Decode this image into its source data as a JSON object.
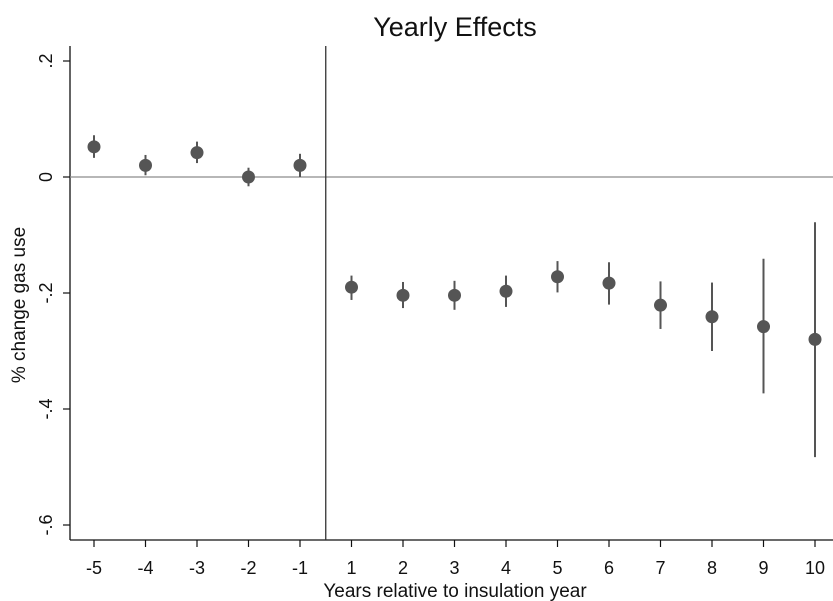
{
  "chart_data": {
    "type": "scatter",
    "title": "Yearly Effects",
    "xlabel": "Years relative to insulation year",
    "ylabel": "% change gas use",
    "x_ticks": [
      "-5",
      "-4",
      "-3",
      "-2",
      "-1",
      "1",
      "2",
      "3",
      "4",
      "5",
      "6",
      "7",
      "8",
      "9",
      "10"
    ],
    "y_ticks": [
      {
        "value": 0.2,
        "label": ".2"
      },
      {
        "value": 0,
        "label": "0"
      },
      {
        "value": -0.2,
        "label": "-.2"
      },
      {
        "value": -0.4,
        "label": "-.4"
      },
      {
        "value": -0.6,
        "label": "-.6"
      }
    ],
    "ylim": [
      -0.62,
      0.225
    ],
    "points": [
      {
        "x": "-5",
        "estimate": 0.052,
        "ci_low": 0.033,
        "ci_high": 0.072
      },
      {
        "x": "-4",
        "estimate": 0.02,
        "ci_low": 0.003,
        "ci_high": 0.038
      },
      {
        "x": "-3",
        "estimate": 0.042,
        "ci_low": 0.024,
        "ci_high": 0.061
      },
      {
        "x": "-2",
        "estimate": 0.0,
        "ci_low": -0.016,
        "ci_high": 0.016
      },
      {
        "x": "-1",
        "estimate": 0.02,
        "ci_low": 0.0,
        "ci_high": 0.04
      },
      {
        "x": "1",
        "estimate": -0.19,
        "ci_low": -0.212,
        "ci_high": -0.17
      },
      {
        "x": "2",
        "estimate": -0.204,
        "ci_low": -0.226,
        "ci_high": -0.181
      },
      {
        "x": "3",
        "estimate": -0.204,
        "ci_low": -0.229,
        "ci_high": -0.179
      },
      {
        "x": "4",
        "estimate": -0.197,
        "ci_low": -0.224,
        "ci_high": -0.17
      },
      {
        "x": "5",
        "estimate": -0.172,
        "ci_low": -0.199,
        "ci_high": -0.145
      },
      {
        "x": "6",
        "estimate": -0.183,
        "ci_low": -0.22,
        "ci_high": -0.147
      },
      {
        "x": "7",
        "estimate": -0.221,
        "ci_low": -0.262,
        "ci_high": -0.18
      },
      {
        "x": "8",
        "estimate": -0.241,
        "ci_low": -0.3,
        "ci_high": -0.182
      },
      {
        "x": "9",
        "estimate": -0.258,
        "ci_low": -0.373,
        "ci_high": -0.141
      },
      {
        "x": "10",
        "estimate": -0.28,
        "ci_low": -0.483,
        "ci_high": -0.078
      }
    ],
    "reference_lines": {
      "horizontal_at_y": 0,
      "vertical_between": [
        "-1",
        "1"
      ]
    },
    "grid": false,
    "legend": "none",
    "colors": {
      "marker": "#555555",
      "ci_line": "#555555",
      "zero_line": "#8c8c8c",
      "divider_line": "#333333",
      "axis": "#111111"
    }
  }
}
